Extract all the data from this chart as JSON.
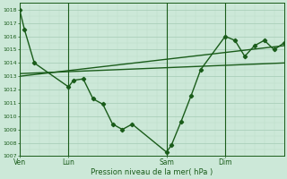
{
  "bg_color": "#cce8d8",
  "grid_major_color": "#aacfba",
  "grid_minor_color": "#bbddc8",
  "line_color": "#1a5c1a",
  "ylim": [
    1007,
    1018.5
  ],
  "ymin": 1007,
  "ymax": 1018,
  "xlabel": "Pression niveau de la mer( hPa )",
  "xtick_labels": [
    "Ven",
    "Lun",
    "Sam",
    "Dim"
  ],
  "xtick_positions": [
    0,
    10,
    30,
    42
  ],
  "xmax": 54,
  "line1_x": [
    0,
    1,
    3,
    10,
    11,
    13,
    15,
    17,
    19,
    21,
    23,
    30,
    31,
    33,
    35,
    37,
    42,
    44,
    46,
    48,
    50,
    52,
    54
  ],
  "line1_y": [
    1018.0,
    1016.5,
    1014.0,
    1012.2,
    1012.7,
    1012.8,
    1011.3,
    1010.9,
    1009.4,
    1009.0,
    1009.4,
    1007.3,
    1007.8,
    1009.6,
    1011.5,
    1013.5,
    1016.0,
    1015.7,
    1014.5,
    1015.3,
    1015.7,
    1015.0,
    1015.5
  ],
  "trend1_x": [
    0,
    54
  ],
  "trend1_y": [
    1013.2,
    1014.0
  ],
  "trend2_x": [
    0,
    54
  ],
  "trend2_y": [
    1013.0,
    1015.3
  ],
  "vline_positions": [
    0,
    10,
    30,
    42
  ]
}
